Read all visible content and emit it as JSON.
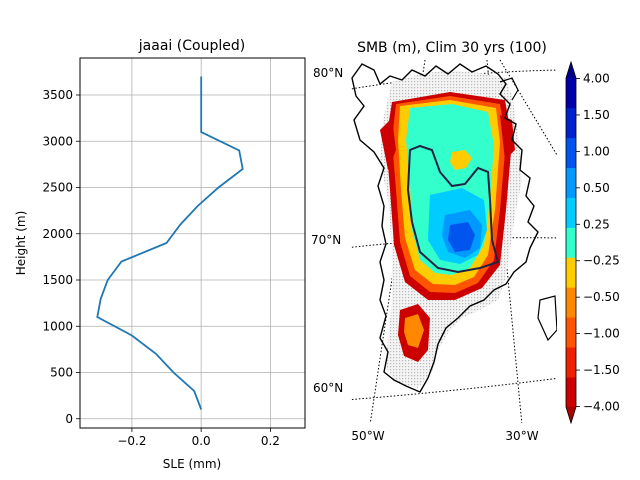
{
  "chart_data": [
    {
      "type": "line",
      "title": "jaaai (Coupled)",
      "xlabel": "SLE (mm)",
      "ylabel": "Height (m)",
      "xlim": [
        -0.35,
        0.3
      ],
      "ylim": [
        -100,
        3900
      ],
      "xticks": [
        -0.2,
        0.0,
        0.2
      ],
      "xtick_labels": [
        "−0.2",
        "0.0",
        "0.2"
      ],
      "yticks": [
        0,
        500,
        1000,
        1500,
        2000,
        2500,
        3000,
        3500
      ],
      "ytick_labels": [
        "0",
        "500",
        "1000",
        "1500",
        "2000",
        "2500",
        "3000",
        "3500"
      ],
      "grid": true,
      "series": [
        {
          "color": "#1f77b4",
          "x": [
            0.0,
            -0.02,
            -0.08,
            -0.13,
            -0.2,
            -0.3,
            -0.29,
            -0.27,
            -0.23,
            -0.1,
            -0.06,
            -0.01,
            0.05,
            0.12,
            0.11,
            0.0,
            0.0,
            0.0
          ],
          "y": [
            100,
            300,
            500,
            700,
            900,
            1100,
            1300,
            1500,
            1700,
            1900,
            2100,
            2300,
            2500,
            2700,
            2900,
            3100,
            3300,
            3700
          ]
        }
      ]
    },
    {
      "type": "heatmap",
      "title": "SMB (m), Clim 30 yrs (100)",
      "lat_labels": [
        "80°N",
        "70°N",
        "60°N"
      ],
      "lon_labels": [
        "50°W",
        "30°W"
      ],
      "colorbar": {
        "ticks": [
          "−4.00",
          "−1.50",
          "−1.00",
          "−0.50",
          "−0.25",
          "0.25",
          "0.50",
          "1.00",
          "1.50",
          "4.00"
        ],
        "colors": [
          "#cc0000",
          "#ee2200",
          "#ff5500",
          "#ff8800",
          "#ffcc00",
          "#33ffcc",
          "#00ccff",
          "#0099ff",
          "#0055ee",
          "#0022cc",
          "#0000aa"
        ]
      }
    }
  ]
}
